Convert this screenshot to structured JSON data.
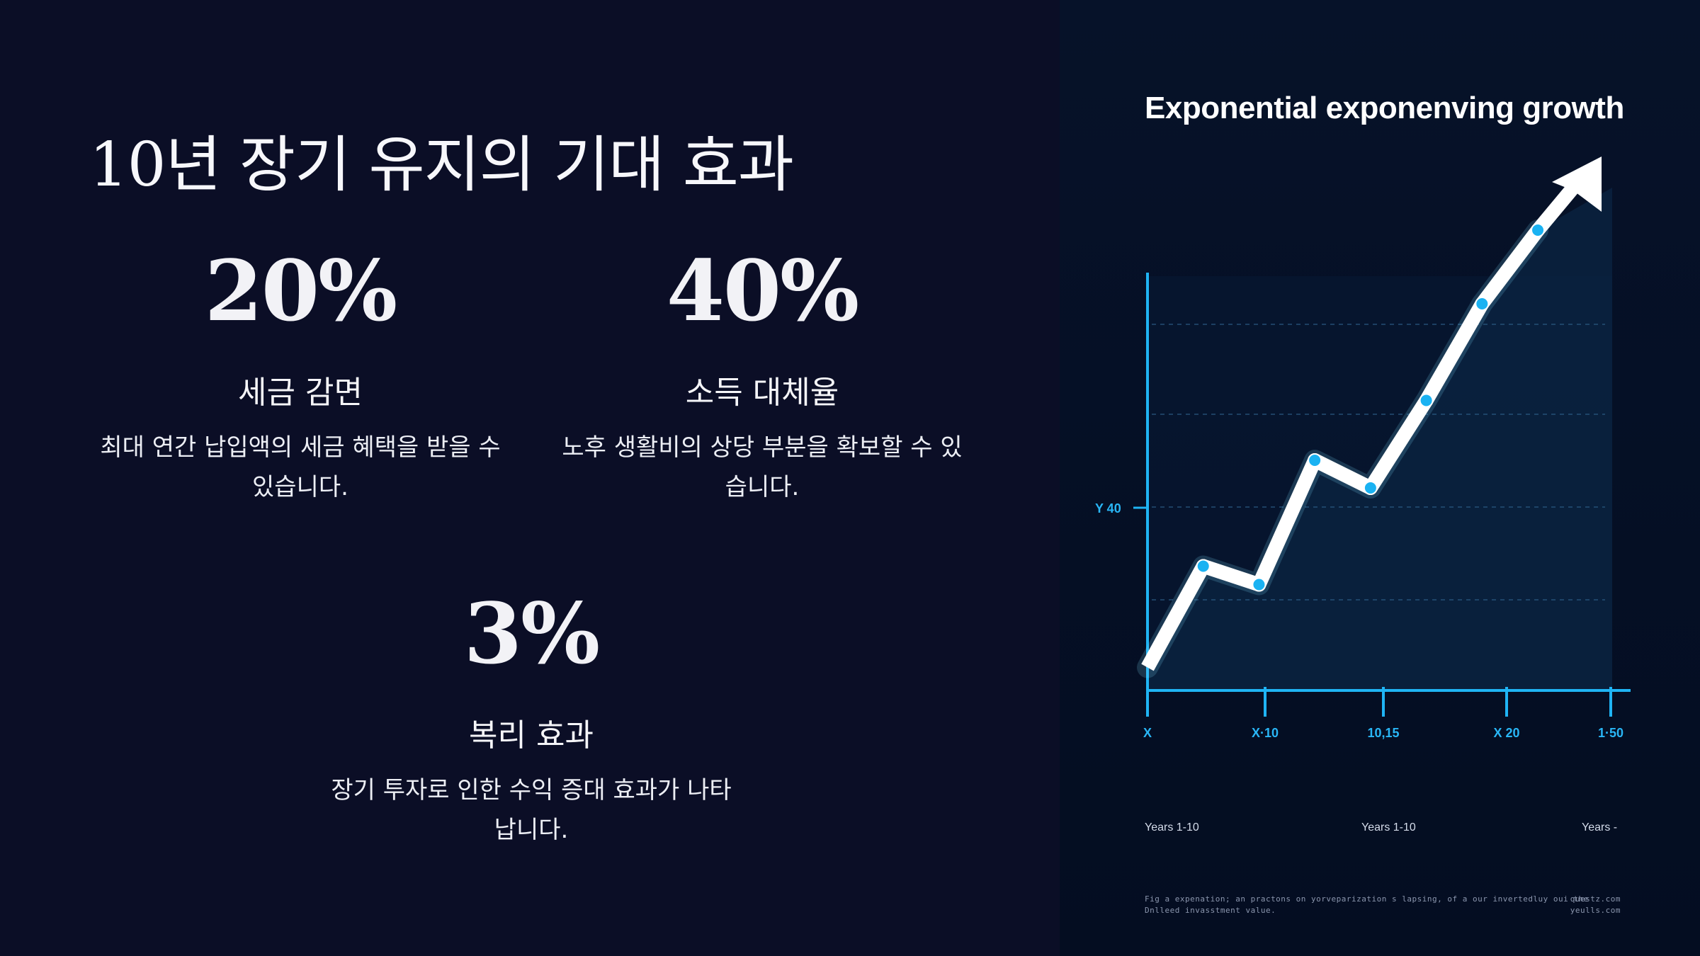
{
  "slide": {
    "title": "10년 장기 유지의 기대 효과",
    "stats": [
      {
        "value": "20%",
        "label": "세금 감면",
        "desc_line1": "최대 연간 납입액의 세금 혜택을 받을 수",
        "desc_line2": "있습니다."
      },
      {
        "value": "40%",
        "label": "소득 대체율",
        "desc_line1": "노후 생활비의 상당 부분을 확보할 수 있",
        "desc_line2": "습니다."
      },
      {
        "value": "3%",
        "label": "복리 효과",
        "desc_line1": "장기 투자로 인한 수익 증대 효과가 나타",
        "desc_line2": "납니다."
      }
    ]
  },
  "chart_data": {
    "type": "line",
    "title": "Exponential exponenving growth",
    "y_tick_label": "Y 40",
    "x_tick_labels": [
      "X",
      "X·10",
      "10,15",
      "X 20",
      "1·50"
    ],
    "period_labels": [
      "Years 1-10",
      "Years 1-10",
      "Years -"
    ],
    "series": [
      {
        "values": [
          0.05,
          0.27,
          0.23,
          0.5,
          0.44,
          0.63,
          0.84,
          1.0
        ]
      }
    ],
    "trend": "upward arrow",
    "grid": "dashed horizontal",
    "colors": {
      "line": "#ffffff",
      "points": "#1ab2f2",
      "axis": "#1fb4f4",
      "fill": "#0a2240"
    },
    "footnote": {
      "line1_left": "Fig a expenation; an practons on yorveparization s lapsing, of a our invertedluy oui the ",
      "line1_right": "questz.com",
      "line2_left": "Dnlleed invasstment value.",
      "line2_right": "yeulls.com"
    }
  }
}
